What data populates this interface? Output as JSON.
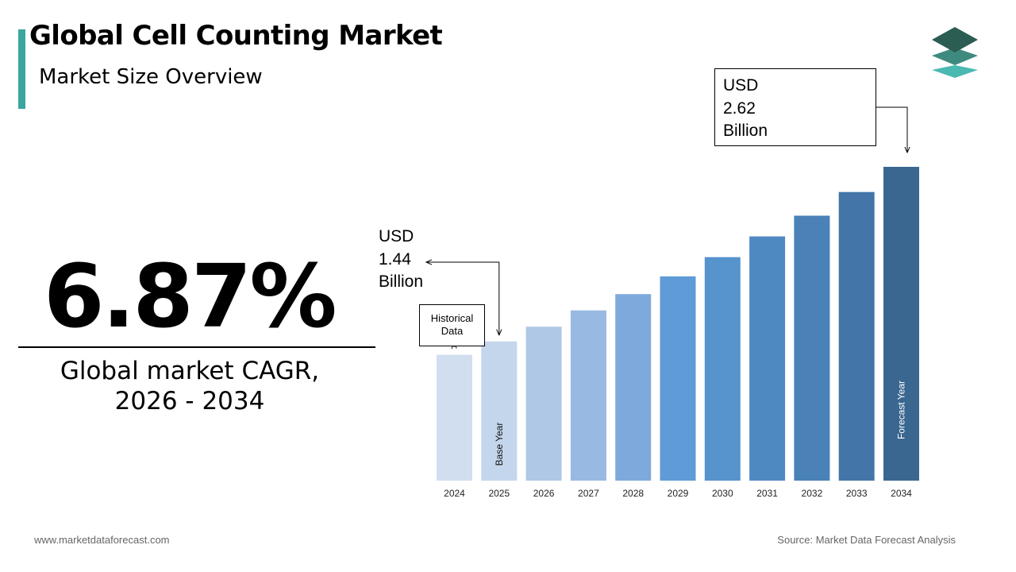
{
  "header": {
    "title": "Global Cell Counting Market",
    "subtitle": "Market Size Overview"
  },
  "cagr": {
    "value": "6.87%",
    "label_line1": "Global market CAGR,",
    "label_line2": "2026 - 2034"
  },
  "callouts": {
    "start": {
      "line1": "USD",
      "line2": "1.44",
      "line3": "Billion"
    },
    "end": {
      "line1": "USD",
      "line2": "2.62",
      "line3": "Billion"
    },
    "historical": {
      "line1": "Historical",
      "line2": "Data"
    }
  },
  "chart_data": {
    "type": "bar",
    "title": "",
    "xlabel": "",
    "ylabel": "",
    "categories": [
      "2024",
      "2025",
      "2026",
      "2027",
      "2028",
      "2029",
      "2030",
      "2031",
      "2032",
      "2033",
      "2034"
    ],
    "values": [
      1.35,
      1.44,
      1.54,
      1.65,
      1.76,
      1.88,
      2.01,
      2.15,
      2.29,
      2.45,
      2.62
    ],
    "units": "USD Billion",
    "bar_labels": {
      "2025": "Base Year",
      "2034": "Forecast Year"
    },
    "colors": [
      "#d0deef",
      "#c4d6ec",
      "#afc8e6",
      "#98b9e1",
      "#7ea9dc",
      "#5f9bd6",
      "#5793cd",
      "#4f89c2",
      "#4a81b7",
      "#4375a8",
      "#3a6790"
    ],
    "grid": false,
    "legend": "none"
  },
  "footer": {
    "website": "www.marketdataforecast.com",
    "source": "Source: Market Data Forecast Analysis"
  },
  "theme": {
    "accent": "#3aa6a0",
    "text": "#000000",
    "muted": "#666666"
  }
}
